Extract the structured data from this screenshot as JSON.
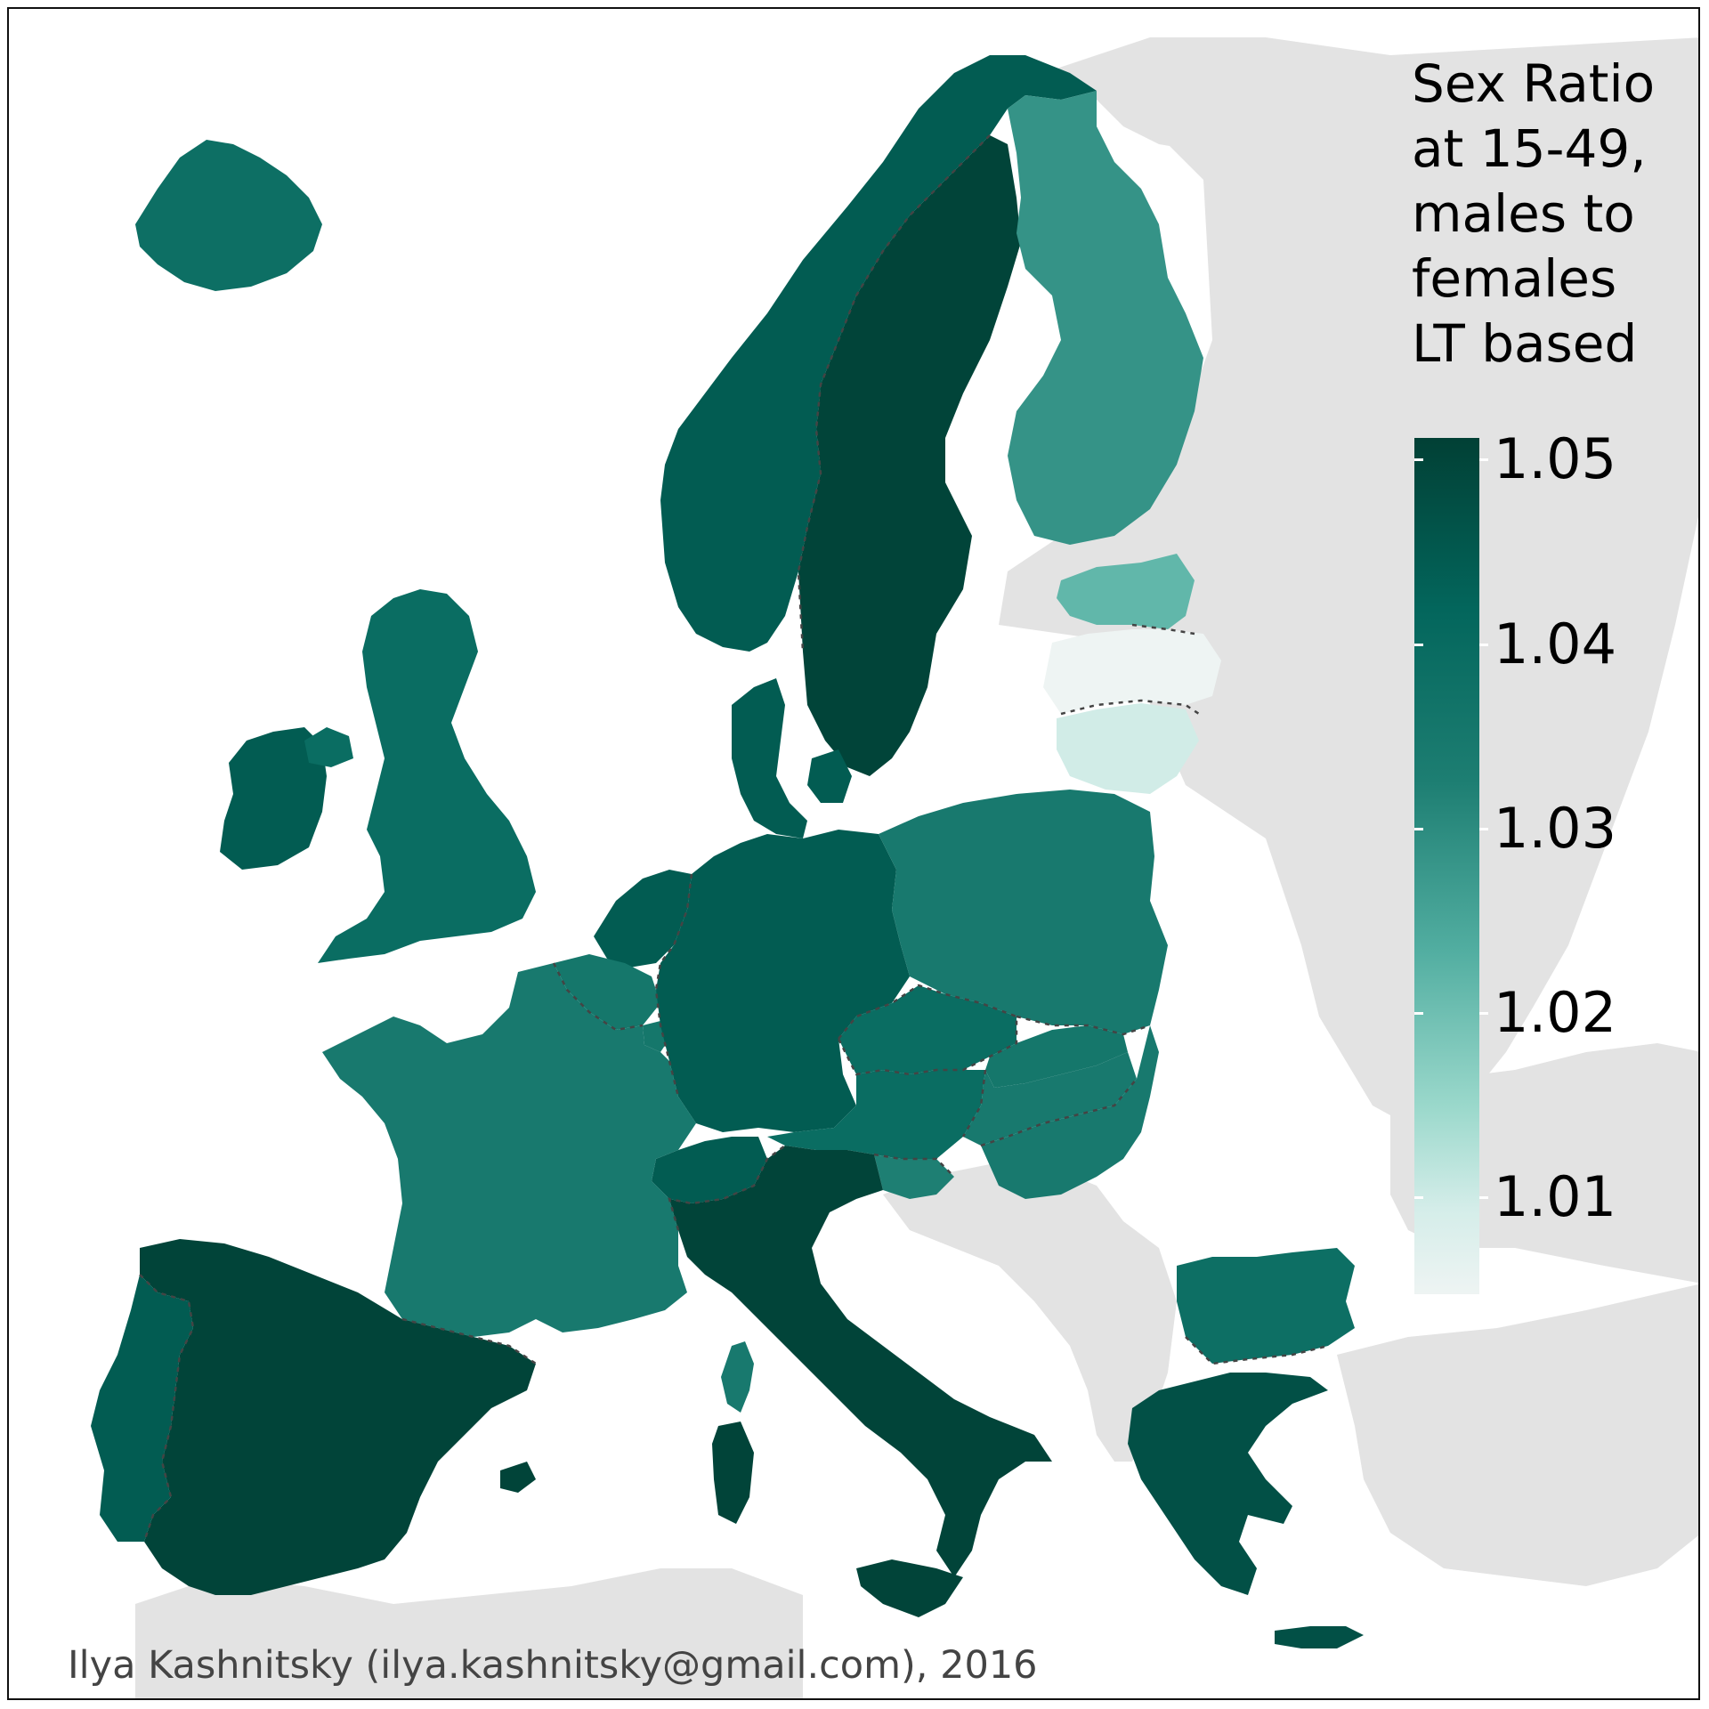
{
  "legend": {
    "title_lines": [
      "Sex Ratio",
      "at 15-49,",
      "males to",
      "females",
      "LT based"
    ],
    "ticks": [
      "1.05",
      "1.04",
      "1.03",
      "1.02",
      "1.01"
    ]
  },
  "credit": "Ilya Kashnitsky (ilya.kashnitsky@gmail.com), 2016",
  "colors": {
    "no_data": "#e3e3e3",
    "scale_high": "#014035",
    "scale_low": "#eef4f3"
  },
  "chart_data": {
    "type": "choropleth",
    "region": "Europe",
    "scale_range": [
      1.005,
      1.052
    ],
    "values": {
      "Iceland": 1.039,
      "Norway": 1.045,
      "Sweden": 1.051,
      "Finland": 1.029,
      "Estonia": 1.022,
      "Latvia": 1.005,
      "Lithuania": 1.01,
      "Ireland": 1.045,
      "United Kingdom": 1.04,
      "Denmark": 1.045,
      "Netherlands": 1.045,
      "Belgium": 1.036,
      "Luxembourg": 1.036,
      "Germany": 1.045,
      "Poland": 1.035,
      "Czech Republic": 1.04,
      "Slovakia": 1.036,
      "Austria": 1.04,
      "Hungary": 1.035,
      "Slovenia": 1.033,
      "Switzerland": 1.045,
      "France": 1.035,
      "Spain": 1.051,
      "Portugal": 1.045,
      "Italy": 1.051,
      "Romania": 1.035,
      "Bulgaria": 1.039,
      "Greece": 1.048
    }
  }
}
